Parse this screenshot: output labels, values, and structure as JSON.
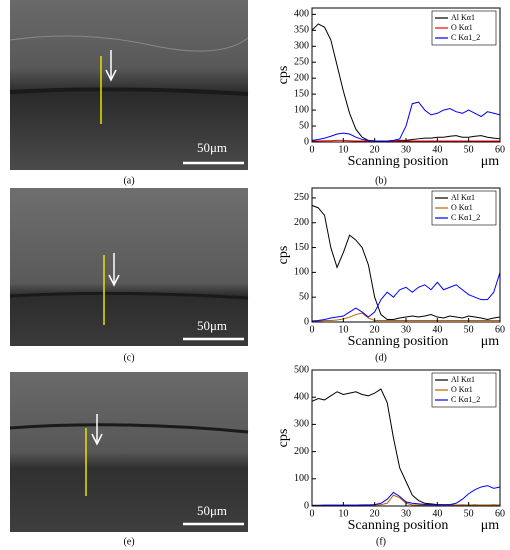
{
  "panels": [
    {
      "label": "(a)",
      "scale_bar": "50μm"
    },
    {
      "label": "(c)",
      "scale_bar": "50μm"
    },
    {
      "label": "(e)",
      "scale_bar": "50μm"
    }
  ],
  "chart_data": [
    {
      "type": "line",
      "panel_label": "(b)",
      "xlabel": "Scanning position",
      "x_unit": "μm",
      "ylabel": "cps",
      "x": [
        0,
        2,
        4,
        6,
        8,
        10,
        12,
        14,
        16,
        18,
        20,
        22,
        24,
        26,
        28,
        30,
        32,
        34,
        36,
        38,
        40,
        42,
        44,
        46,
        48,
        50,
        52,
        54,
        56,
        58,
        60
      ],
      "xlim": [
        0,
        60
      ],
      "xticks": [
        0,
        10,
        20,
        30,
        40,
        50,
        60
      ],
      "ylim": [
        0,
        420
      ],
      "yticks": [
        0,
        50,
        100,
        150,
        200,
        250,
        300,
        350,
        400
      ],
      "legend": "upper right",
      "series": [
        {
          "name": "Al Kα1",
          "color": "#000000",
          "values": [
            350,
            370,
            360,
            320,
            240,
            160,
            90,
            40,
            15,
            5,
            3,
            2,
            2,
            3,
            5,
            5,
            8,
            10,
            12,
            12,
            15,
            15,
            18,
            20,
            15,
            15,
            18,
            20,
            15,
            12,
            10
          ]
        },
        {
          "name": "O Kα1",
          "color": "#ff0000",
          "values": [
            3,
            3,
            4,
            4,
            5,
            5,
            4,
            3,
            3,
            3,
            3,
            3,
            3,
            3,
            3,
            3,
            3,
            3,
            3,
            3,
            3,
            3,
            3,
            3,
            3,
            3,
            3,
            3,
            3,
            3,
            3
          ]
        },
        {
          "name": "C Kα1_2",
          "color": "#0000ff",
          "values": [
            5,
            8,
            12,
            18,
            25,
            28,
            25,
            15,
            8,
            5,
            3,
            3,
            3,
            5,
            10,
            50,
            120,
            125,
            100,
            85,
            90,
            100,
            105,
            95,
            90,
            100,
            90,
            80,
            95,
            90,
            85
          ]
        }
      ]
    },
    {
      "type": "line",
      "panel_label": "(d)",
      "xlabel": "Scanning position",
      "x_unit": "μm",
      "ylabel": "cps",
      "x": [
        0,
        2,
        4,
        6,
        8,
        10,
        12,
        14,
        16,
        18,
        20,
        22,
        24,
        26,
        28,
        30,
        32,
        34,
        36,
        38,
        40,
        42,
        44,
        46,
        48,
        50,
        52,
        54,
        56,
        58,
        60
      ],
      "xlim": [
        0,
        60
      ],
      "xticks": [
        0,
        10,
        20,
        30,
        40,
        50,
        60
      ],
      "ylim": [
        0,
        270
      ],
      "yticks": [
        0,
        50,
        100,
        150,
        200,
        250
      ],
      "legend": "upper right",
      "series": [
        {
          "name": "Al Kα1",
          "color": "#000000",
          "values": [
            235,
            230,
            215,
            150,
            110,
            140,
            175,
            165,
            150,
            115,
            50,
            15,
            5,
            5,
            8,
            10,
            12,
            10,
            12,
            15,
            10,
            8,
            12,
            10,
            8,
            12,
            10,
            8,
            5,
            8,
            10
          ]
        },
        {
          "name": "O Kα1",
          "color": "#c06000",
          "values": [
            2,
            2,
            3,
            3,
            4,
            6,
            10,
            15,
            18,
            8,
            3,
            3,
            3,
            3,
            3,
            3,
            3,
            3,
            3,
            3,
            3,
            3,
            3,
            3,
            3,
            3,
            3,
            3,
            3,
            3,
            3
          ]
        },
        {
          "name": "C Kα1_2",
          "color": "#0000ff",
          "values": [
            2,
            3,
            5,
            8,
            10,
            12,
            20,
            28,
            20,
            10,
            20,
            45,
            60,
            50,
            65,
            70,
            60,
            70,
            75,
            65,
            80,
            65,
            70,
            75,
            65,
            55,
            50,
            45,
            45,
            60,
            100
          ]
        }
      ]
    },
    {
      "type": "line",
      "panel_label": "(f)",
      "xlabel": "Scanning position",
      "x_unit": "μm",
      "ylabel": "cps",
      "x": [
        0,
        2,
        4,
        6,
        8,
        10,
        12,
        14,
        16,
        18,
        20,
        22,
        24,
        26,
        28,
        30,
        32,
        34,
        36,
        38,
        40,
        42,
        44,
        46,
        48,
        50,
        52,
        54,
        56,
        58,
        60
      ],
      "xlim": [
        0,
        60
      ],
      "xticks": [
        0,
        10,
        20,
        30,
        40,
        50,
        60
      ],
      "ylim": [
        0,
        500
      ],
      "yticks": [
        0,
        100,
        200,
        300,
        400,
        500
      ],
      "legend": "upper right",
      "series": [
        {
          "name": "Al Kα1",
          "color": "#000000",
          "values": [
            385,
            395,
            390,
            405,
            420,
            410,
            415,
            420,
            410,
            405,
            415,
            430,
            380,
            250,
            140,
            90,
            40,
            20,
            10,
            8,
            5,
            4,
            4,
            3,
            4,
            3,
            4,
            3,
            3,
            4,
            3
          ]
        },
        {
          "name": "O Kα1",
          "color": "#c06000",
          "values": [
            3,
            3,
            3,
            3,
            3,
            3,
            3,
            3,
            3,
            3,
            4,
            5,
            10,
            40,
            30,
            10,
            4,
            3,
            3,
            3,
            3,
            3,
            3,
            3,
            3,
            3,
            3,
            3,
            3,
            3,
            3
          ]
        },
        {
          "name": "C Kα1_2",
          "color": "#0000ff",
          "values": [
            2,
            2,
            3,
            3,
            3,
            3,
            3,
            3,
            4,
            4,
            5,
            10,
            25,
            50,
            35,
            15,
            10,
            8,
            6,
            5,
            5,
            5,
            5,
            10,
            25,
            45,
            60,
            70,
            75,
            65,
            70
          ]
        }
      ]
    }
  ]
}
